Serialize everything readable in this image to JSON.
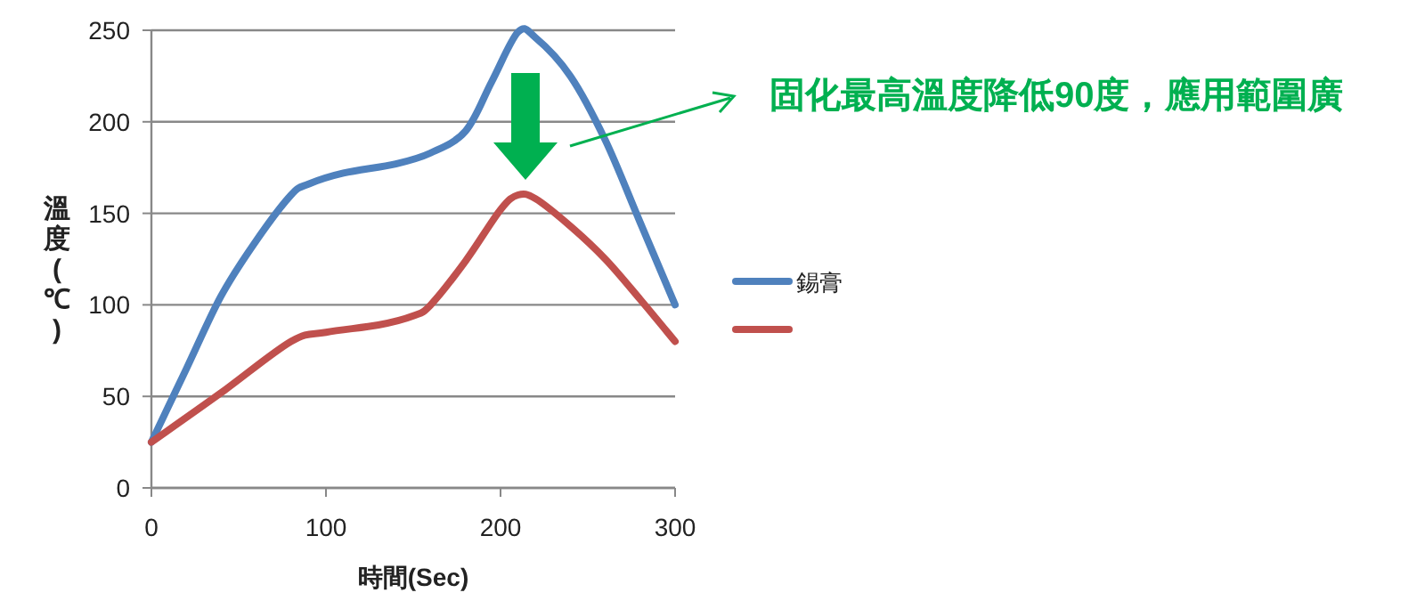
{
  "chart_data": {
    "type": "line",
    "xlabel": "時間(Sec)",
    "ylabel": "溫度(℃)",
    "xlim": [
      0,
      300
    ],
    "xticks": [
      0,
      100,
      200,
      300
    ],
    "ylim": [
      0,
      250
    ],
    "yticks": [
      0,
      50,
      100,
      150,
      200,
      250
    ],
    "grid": "y",
    "legend": "right",
    "marker": "none",
    "line_style": "solid",
    "annotations": [
      "固化最高溫度降低90度，應用範圍廣"
    ],
    "series": [
      {
        "name": "錫膏",
        "color": "#4f81bd",
        "x": [
          0,
          20,
          40,
          60,
          80,
          90,
          110,
          140,
          160,
          180,
          195,
          210,
          220,
          240,
          260,
          280,
          300
        ],
        "values": [
          25,
          65,
          105,
          135,
          160,
          166,
          172,
          177,
          183,
          195,
          222,
          249,
          246,
          225,
          190,
          145,
          100
        ]
      },
      {
        "color": "#c0504d",
        "x": [
          0,
          40,
          80,
          100,
          130,
          150,
          160,
          180,
          200,
          210,
          220,
          240,
          260,
          280,
          300
        ],
        "values": [
          25,
          52,
          80,
          85,
          89,
          94,
          100,
          124,
          152,
          160,
          158,
          143,
          125,
          103,
          80
        ]
      }
    ]
  }
}
